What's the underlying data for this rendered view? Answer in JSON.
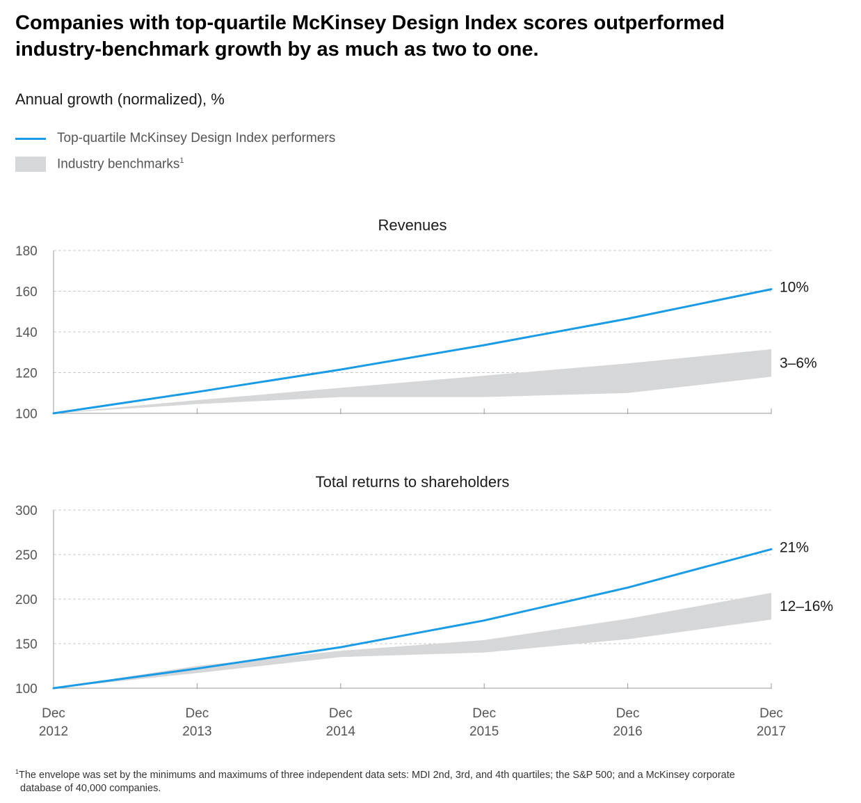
{
  "title_line1": "Companies with top-quartile McKinsey Design Index scores outperformed",
  "title_line2": "industry-benchmark growth by as much as two to one.",
  "subtitle": "Annual growth (normalized), %",
  "legend": {
    "line_label": "Top-quartile McKinsey Design Index performers",
    "band_label": "Industry benchmarks",
    "band_footnote_mark": "1"
  },
  "footnote": {
    "mark": "1",
    "line1": "The envelope was set by the minimums and maximums of three independent data sets: MDI 2nd, 3rd, and 4th quartiles; the S&P 500; and a McKinsey corporate",
    "line2": "database of 40,000 companies."
  },
  "colors": {
    "line": "#1a9be6",
    "band": "#d6d7d9",
    "grid": "#c8c8c8",
    "axis": "#999999"
  },
  "chart_data": [
    {
      "type": "line",
      "title": "Revenues",
      "x": [
        "Dec 2012",
        "Dec 2013",
        "Dec 2014",
        "Dec 2015",
        "Dec 2016",
        "Dec 2017"
      ],
      "ylim": [
        100,
        180
      ],
      "yticks": [
        100,
        120,
        140,
        160,
        180
      ],
      "series": [
        {
          "name": "Top-quartile McKinsey Design Index performers",
          "values": [
            100,
            110.5,
            121.5,
            133.5,
            146.5,
            161
          ]
        }
      ],
      "band": {
        "name": "Industry benchmarks",
        "lower": [
          100,
          104.5,
          108,
          108,
          110,
          118
        ],
        "upper": [
          100,
          106.5,
          112.5,
          118.5,
          124.5,
          131.5
        ]
      },
      "annotations": {
        "line_end": "10%",
        "band_end": "3–6%"
      },
      "grid": true
    },
    {
      "type": "line",
      "title": "Total returns to shareholders",
      "x": [
        "Dec 2012",
        "Dec 2013",
        "Dec 2014",
        "Dec 2015",
        "Dec 2016",
        "Dec 2017"
      ],
      "xtick_labels": [
        [
          "Dec",
          "2012"
        ],
        [
          "Dec",
          "2013"
        ],
        [
          "Dec",
          "2014"
        ],
        [
          "Dec",
          "2015"
        ],
        [
          "Dec",
          "2016"
        ],
        [
          "Dec",
          "2017"
        ]
      ],
      "ylim": [
        100,
        300
      ],
      "yticks": [
        100,
        150,
        200,
        250,
        300
      ],
      "series": [
        {
          "name": "Top-quartile McKinsey Design Index performers",
          "values": [
            100,
            122,
            146,
            176,
            213,
            256
          ]
        }
      ],
      "band": {
        "name": "Industry benchmarks",
        "lower": [
          100,
          117,
          135,
          140,
          155,
          177
        ],
        "upper": [
          100,
          125,
          142,
          154,
          178,
          207
        ]
      },
      "annotations": {
        "line_end": "21%",
        "band_end": "12–16%"
      },
      "grid": true
    }
  ]
}
